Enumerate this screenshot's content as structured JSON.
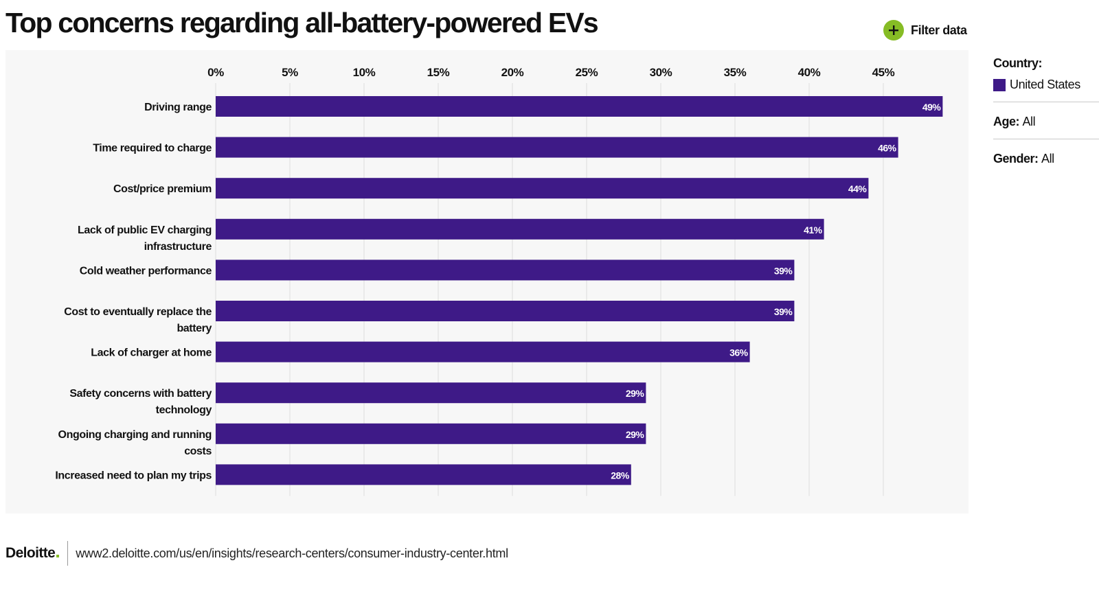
{
  "header": {
    "title": "Top concerns regarding all-battery-powered EVs",
    "filter_label": "Filter data"
  },
  "filters": {
    "country_label": "Country:",
    "country_value": "United States",
    "age_label": "Age:",
    "age_value": "All",
    "gender_label": "Gender:",
    "gender_value": "All"
  },
  "colors": {
    "bar": "#3e1a87",
    "accent": "#86bc25",
    "panel_bg": "#f7f7f7"
  },
  "icons": {
    "filter": "plus-circle-icon"
  },
  "footer": {
    "logo": "Deloitte",
    "url": "www2.deloitte.com/us/en/insights/research-centers/consumer-industry-center.html"
  },
  "chart_data": {
    "type": "bar",
    "orientation": "horizontal",
    "title": "Top concerns regarding all-battery-powered EVs",
    "categories": [
      [
        "Driving range"
      ],
      [
        "Time required to charge"
      ],
      [
        "Cost/price premium"
      ],
      [
        "Lack of public EV charging",
        "infrastructure"
      ],
      [
        "Cold weather performance"
      ],
      [
        "Cost to eventually replace the",
        "battery"
      ],
      [
        "Lack of charger at home"
      ],
      [
        "Safety concerns with battery",
        "technology"
      ],
      [
        "Ongoing charging and running",
        "costs"
      ],
      [
        "Increased need to plan my trips"
      ]
    ],
    "series": [
      {
        "name": "United States",
        "values": [
          49,
          46,
          44,
          41,
          39,
          39,
          36,
          29,
          29,
          28
        ],
        "labels": [
          "49%",
          "46%",
          "44%",
          "41%",
          "39%",
          "39%",
          "36%",
          "29%",
          "29%",
          "28%"
        ]
      }
    ],
    "xticks": [
      0,
      5,
      10,
      15,
      20,
      25,
      30,
      35,
      40,
      45
    ],
    "xtick_labels": [
      "0%",
      "5%",
      "10%",
      "15%",
      "20%",
      "25%",
      "30%",
      "35%",
      "40%",
      "45%"
    ],
    "xlim": [
      0,
      50
    ],
    "xlabel": "",
    "ylabel": "",
    "grid": true,
    "axis_position": "top"
  }
}
